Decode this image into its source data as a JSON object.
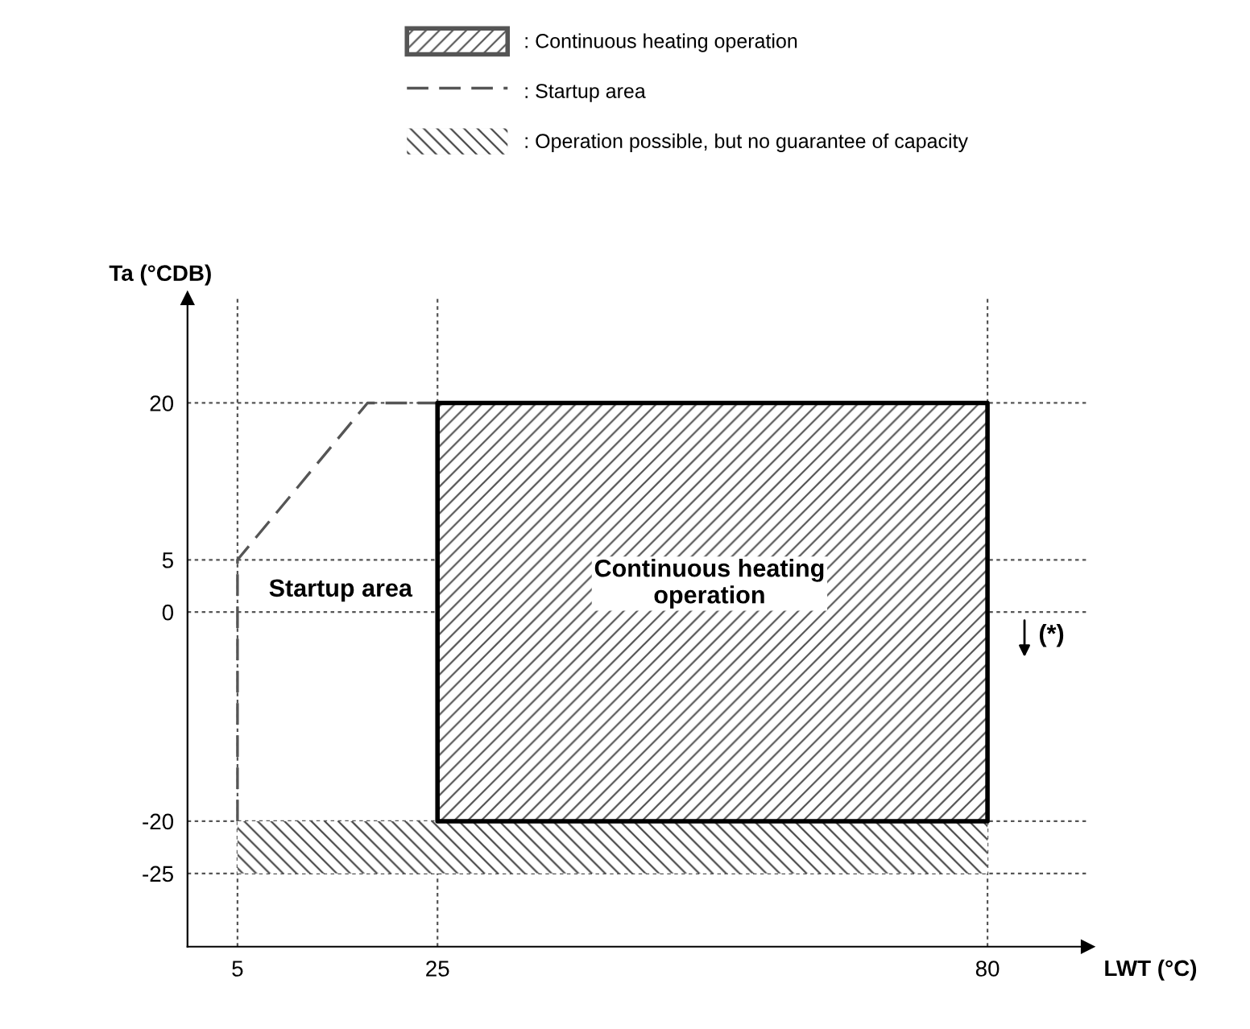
{
  "chart_data": {
    "type": "area",
    "xlabel": "LWT (°C)",
    "ylabel": "Ta (°CDB)",
    "xlim": [
      0,
      90
    ],
    "ylim": [
      -32,
      30
    ],
    "xticks": [
      5,
      25,
      80
    ],
    "yticks": [
      -25,
      -20,
      0,
      5,
      20
    ],
    "grid": true,
    "legend": "top",
    "series": [
      {
        "name": ": Continuous heating operation",
        "color": "#555555",
        "x": [
          25,
          80,
          80,
          25
        ],
        "values": [
          20,
          20,
          -20,
          -20
        ]
      },
      {
        "name": ": Startup area",
        "type": "line",
        "line_style": "dashed",
        "color": "#555555",
        "x": [
          5,
          5,
          18,
          25
        ],
        "values": [
          -20,
          5,
          20,
          20
        ]
      },
      {
        "name": ": Operation possible, but no guarantee of capacity",
        "color": "#444444",
        "x": [
          5,
          80,
          80,
          5
        ],
        "values": [
          -20,
          -20,
          -25,
          -25
        ]
      }
    ],
    "annotations": [
      "Startup area",
      "Continuous heating\noperation",
      "(*)"
    ]
  }
}
